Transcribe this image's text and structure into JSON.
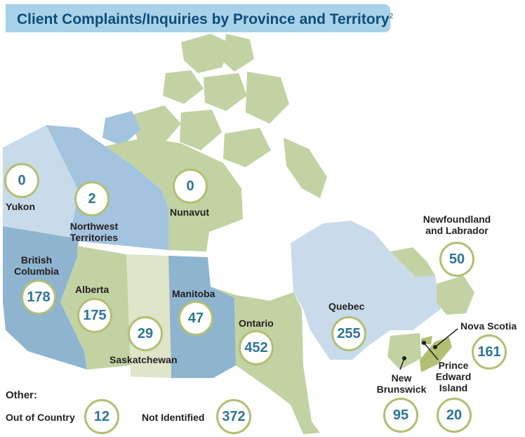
{
  "title": "Client Complaints/Inquiries by Province and Territory",
  "title_footnote": "2",
  "regions": [
    {
      "id": "yukon",
      "name": "Yukon",
      "value": "0"
    },
    {
      "id": "nwt",
      "name": "Northwest Territories",
      "value": "2"
    },
    {
      "id": "nunavut",
      "name": "Nunavut",
      "value": "0"
    },
    {
      "id": "bc",
      "name": "British Columbia",
      "value": "178"
    },
    {
      "id": "alberta",
      "name": "Alberta",
      "value": "175"
    },
    {
      "id": "saskatchewan",
      "name": "Saskatchewan",
      "value": "29"
    },
    {
      "id": "manitoba",
      "name": "Manitoba",
      "value": "47"
    },
    {
      "id": "ontario",
      "name": "Ontario",
      "value": "452"
    },
    {
      "id": "quebec",
      "name": "Quebec",
      "value": "255"
    },
    {
      "id": "nl",
      "name": "Newfoundland and Labrador",
      "value": "50"
    },
    {
      "id": "ns",
      "name": "Nova Scotia",
      "value": "161"
    },
    {
      "id": "nb",
      "name": "New Brunswick",
      "value": "95"
    },
    {
      "id": "pei",
      "name": "Prince Edward Island",
      "value": "20"
    }
  ],
  "other": {
    "heading": "Other:",
    "out_of_country": {
      "label": "Out of Country",
      "value": "12"
    },
    "not_identified": {
      "label": "Not Identified",
      "value": "372"
    }
  },
  "colors": {
    "light_blue": "#c9dbea",
    "mid_blue": "#a4c3de",
    "dark_blue": "#8fb4d0",
    "olive": "#c2d2a3",
    "olive_dark": "#b2bf72",
    "pale": "#dfe5c8",
    "number": "#2d7499",
    "title": "#0f4c78",
    "title_bg": "#a7d2ea"
  }
}
